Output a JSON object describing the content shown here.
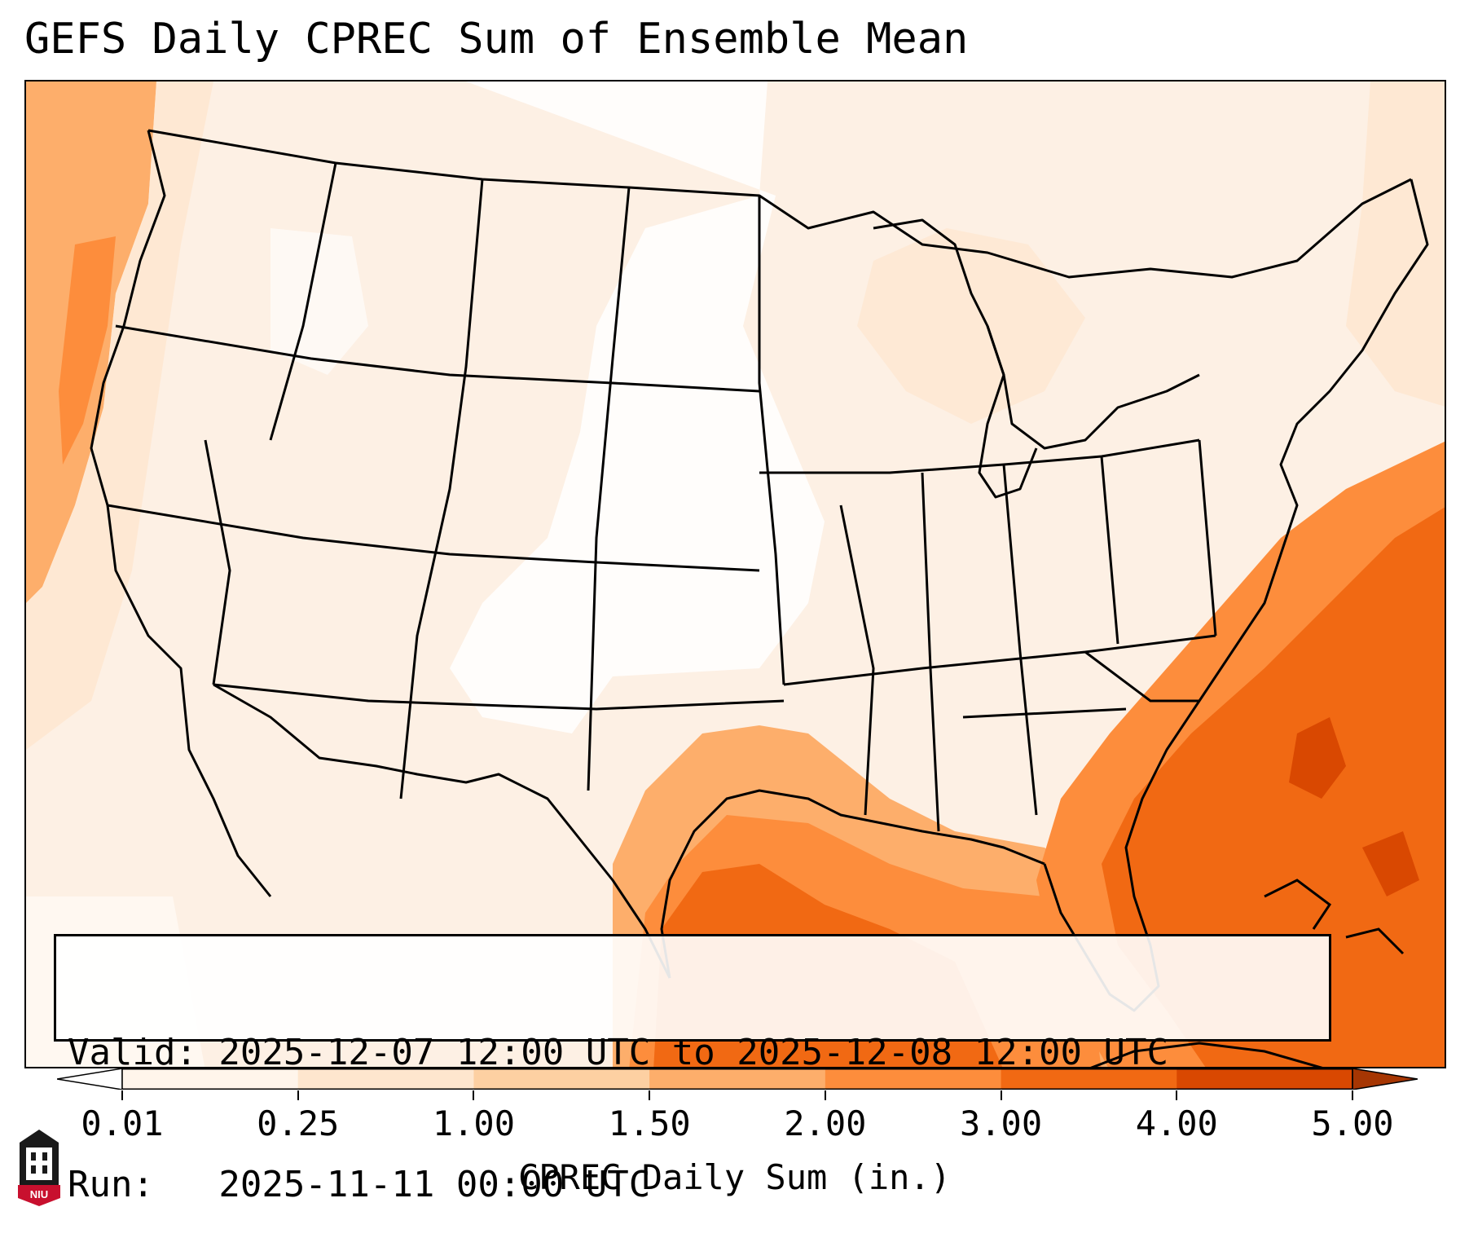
{
  "title": "GEFS Daily CPREC Sum of Ensemble Mean",
  "info": {
    "valid": "Valid: 2025-12-07 12:00 UTC to 2025-12-08 12:00 UTC",
    "run": "Run:   2025-11-11 00:00 UTC"
  },
  "colorbar": {
    "label": "CPREC Daily Sum (in.)",
    "ticks": [
      "0.01",
      "0.25",
      "1.00",
      "1.50",
      "2.00",
      "3.00",
      "4.00",
      "5.00"
    ],
    "colors": [
      "#fff5eb",
      "#fee6ce",
      "#fdd0a2",
      "#fdae6b",
      "#fd8d3c",
      "#f16913",
      "#d94801",
      "#a63603"
    ],
    "extend": "both"
  },
  "logo": {
    "text": "NIU",
    "color": "#c8102e"
  }
}
